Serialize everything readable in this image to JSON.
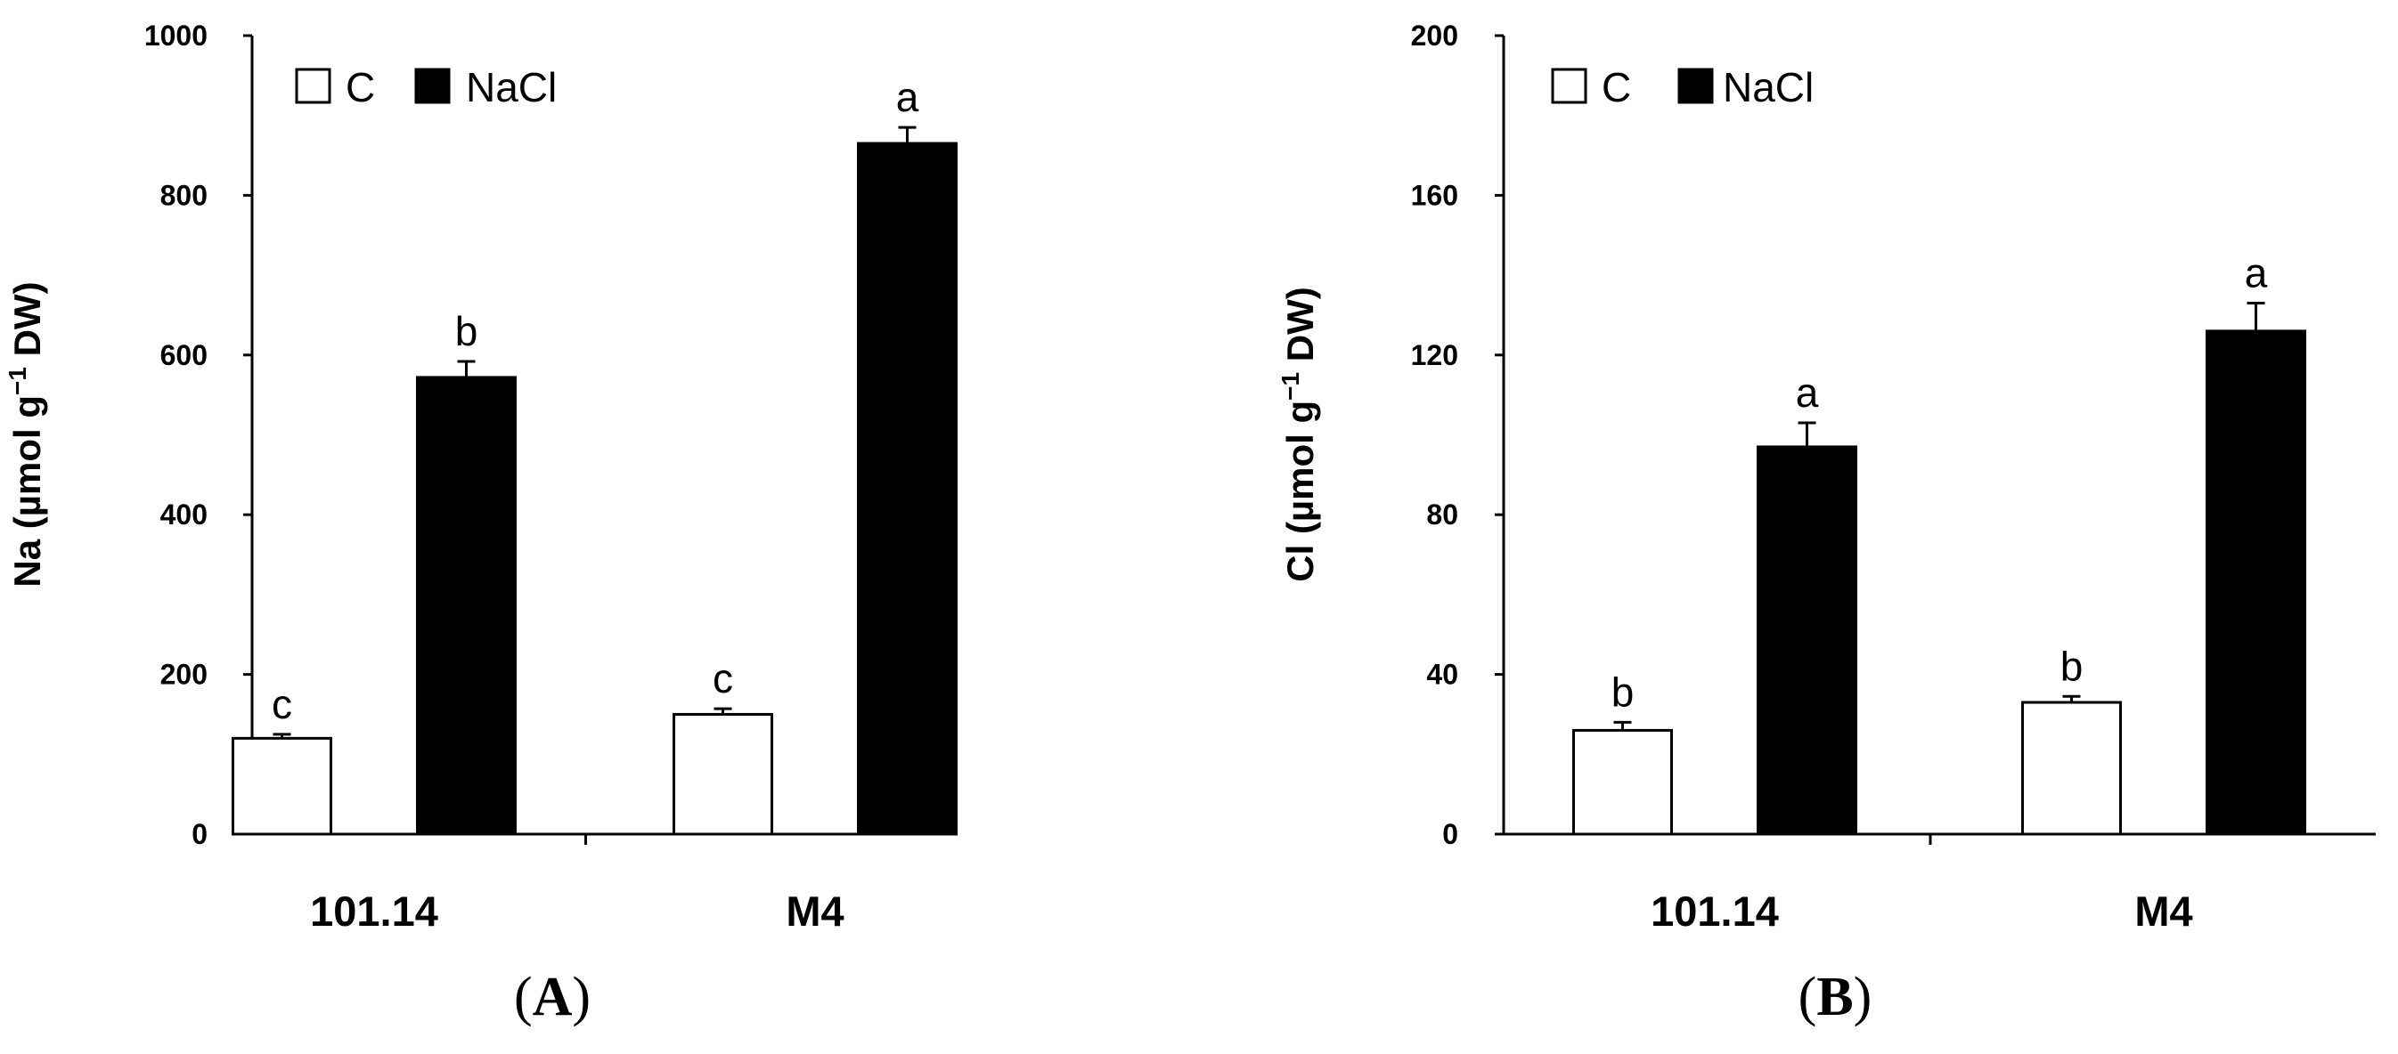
{
  "chart_data": [
    {
      "type": "bar",
      "panel_label": "A",
      "categories": [
        "101.14",
        "M4"
      ],
      "series": [
        {
          "name": "C",
          "values": [
            120,
            150
          ],
          "errors": [
            5,
            7
          ],
          "labels": [
            "c",
            "c"
          ],
          "color": "#ffffff"
        },
        {
          "name": "NaCl",
          "values": [
            572,
            865
          ],
          "errors": [
            20,
            20
          ],
          "labels": [
            "b",
            "a"
          ],
          "color": "#000000"
        }
      ],
      "ylabel": "Na (µmol g⁻¹ DW)",
      "ylim": [
        0,
        1000
      ],
      "yticks": [
        0,
        200,
        400,
        600,
        800,
        1000
      ],
      "legend": "top-left",
      "grid": false
    },
    {
      "type": "bar",
      "panel_label": "B",
      "categories": [
        "101.14",
        "M4"
      ],
      "series": [
        {
          "name": "C",
          "values": [
            26,
            33
          ],
          "errors": [
            2,
            1.5
          ],
          "labels": [
            "b",
            "b"
          ],
          "color": "#ffffff"
        },
        {
          "name": "NaCl",
          "values": [
            97,
            126
          ],
          "errors": [
            6,
            7
          ],
          "labels": [
            "a",
            "a"
          ],
          "color": "#000000"
        }
      ],
      "ylabel": "Cl (µmol g⁻¹ DW)",
      "ylim": [
        0,
        200
      ],
      "yticks": [
        0,
        40,
        80,
        120,
        160,
        200
      ],
      "legend": "top-left",
      "grid": false
    }
  ]
}
